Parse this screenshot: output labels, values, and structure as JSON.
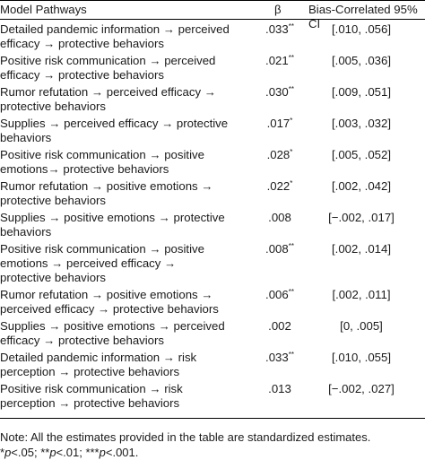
{
  "header": {
    "model_pathways": "Model Pathways",
    "beta": "β",
    "ci": "Bias-Correlated 95% CI"
  },
  "rows": [
    {
      "pathway": "Detailed pandemic information → perceived\n  efficacy → protective behaviors",
      "beta": ".033",
      "sig": "**",
      "ci": "[.010, .056]"
    },
    {
      "pathway": "Positive risk communication → perceived\n  efficacy → protective behaviors",
      "beta": ".021",
      "sig": "**",
      "ci": "[.005, .036]"
    },
    {
      "pathway": "Rumor refutation → perceived efficacy →\n  protective behaviors",
      "beta": ".030",
      "sig": "**",
      "ci": "[.009, .051]"
    },
    {
      "pathway": "Supplies → perceived efficacy → protective\n  behaviors",
      "beta": ".017",
      "sig": "*",
      "ci": "[.003, .032]"
    },
    {
      "pathway": "Positive risk communication → positive\n  emotions→ protective behaviors",
      "beta": ".028",
      "sig": "*",
      "ci": "[.005, .052]"
    },
    {
      "pathway": "Rumor refutation → positive emotions →\n  protective behaviors",
      "beta": ".022",
      "sig": "*",
      "ci": "[.002, .042]"
    },
    {
      "pathway": "Supplies → positive emotions → protective\n  behaviors",
      "beta": ".008",
      "sig": "",
      "ci": "[−.002, .017]"
    },
    {
      "pathway": "Positive risk communication → positive\n  emotions → perceived efficacy →\n  protective behaviors",
      "beta": ".008",
      "sig": "**",
      "ci": "[.002, .014]"
    },
    {
      "pathway": "Rumor refutation → positive emotions →\n  perceived efficacy → protective behaviors",
      "beta": ".006",
      "sig": "**",
      "ci": "[.002, .011]"
    },
    {
      "pathway": "Supplies → positive emotions → perceived\n  efficacy → protective behaviors",
      "beta": ".002",
      "sig": "",
      "ci": "[0, .005]"
    },
    {
      "pathway": "Detailed pandemic information → risk\n  perception → protective behaviors",
      "beta": ".033",
      "sig": "**",
      "ci": "[.010, .055]"
    },
    {
      "pathway": "Positive risk communication → risk\n  perception → protective behaviors",
      "beta": ".013",
      "sig": "",
      "ci": "[−.002, .027]"
    }
  ],
  "note": {
    "line1": "Note: All the estimates provided in the table are standardized estimates.",
    "s1": "*",
    "p": "p",
    "t1": "<.05; ",
    "s2": "**",
    "t2": "<.01; ",
    "s3": "***",
    "t3": "<.001."
  }
}
